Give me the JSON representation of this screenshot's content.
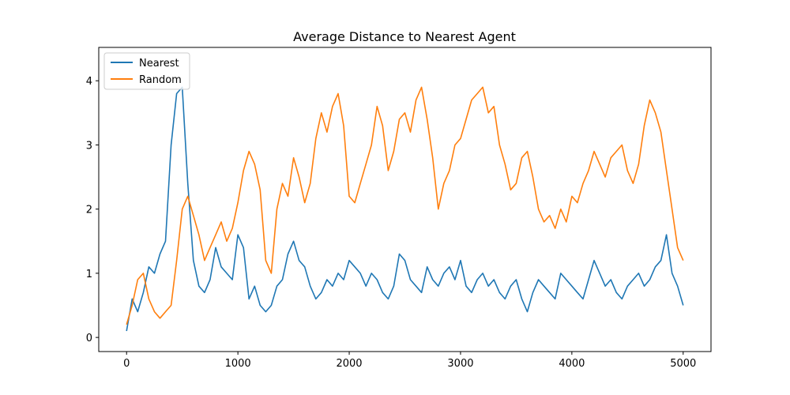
{
  "chart_data": {
    "type": "line",
    "title": "Average Distance to Nearest Agent",
    "xlabel": "",
    "ylabel": "",
    "xlim": [
      -250,
      5250
    ],
    "ylim": [
      -0.22,
      4.52
    ],
    "x_ticks": [
      0,
      1000,
      2000,
      3000,
      4000,
      5000
    ],
    "x_tick_labels": [
      "0",
      "1000",
      "2000",
      "3000",
      "4000",
      "5000"
    ],
    "y_ticks": [
      0,
      1,
      2,
      3,
      4
    ],
    "y_tick_labels": [
      "0",
      "1",
      "2",
      "3",
      "4"
    ],
    "grid": false,
    "legend_position": "top-left",
    "series": [
      {
        "name": "Nearest",
        "color": "#1f77b4",
        "x": [
          0,
          50,
          100,
          150,
          200,
          250,
          300,
          350,
          400,
          450,
          500,
          550,
          600,
          650,
          700,
          750,
          800,
          850,
          900,
          950,
          1000,
          1050,
          1100,
          1150,
          1200,
          1250,
          1300,
          1350,
          1400,
          1450,
          1500,
          1550,
          1600,
          1650,
          1700,
          1750,
          1800,
          1850,
          1900,
          1950,
          2000,
          2050,
          2100,
          2150,
          2200,
          2250,
          2300,
          2350,
          2400,
          2450,
          2500,
          2550,
          2600,
          2650,
          2700,
          2750,
          2800,
          2850,
          2900,
          2950,
          3000,
          3050,
          3100,
          3150,
          3200,
          3250,
          3300,
          3350,
          3400,
          3450,
          3500,
          3550,
          3600,
          3650,
          3700,
          3750,
          3800,
          3850,
          3900,
          3950,
          4000,
          4050,
          4100,
          4150,
          4200,
          4250,
          4300,
          4350,
          4400,
          4450,
          4500,
          4550,
          4600,
          4650,
          4700,
          4750,
          4800,
          4850,
          4900,
          4950,
          5000
        ],
        "y": [
          0.1,
          0.6,
          0.4,
          0.7,
          1.1,
          1.0,
          1.3,
          1.5,
          3.0,
          3.8,
          3.9,
          2.4,
          1.2,
          0.8,
          0.7,
          0.9,
          1.4,
          1.1,
          1.0,
          0.9,
          1.6,
          1.4,
          0.6,
          0.8,
          0.5,
          0.4,
          0.5,
          0.8,
          0.9,
          1.3,
          1.5,
          1.2,
          1.1,
          0.8,
          0.6,
          0.7,
          0.9,
          0.8,
          1.0,
          0.9,
          1.2,
          1.1,
          1.0,
          0.8,
          1.0,
          0.9,
          0.7,
          0.6,
          0.8,
          1.3,
          1.2,
          0.9,
          0.8,
          0.7,
          1.1,
          0.9,
          0.8,
          1.0,
          1.1,
          0.9,
          1.2,
          0.8,
          0.7,
          0.9,
          1.0,
          0.8,
          0.9,
          0.7,
          0.6,
          0.8,
          0.9,
          0.6,
          0.4,
          0.7,
          0.9,
          0.8,
          0.7,
          0.6,
          1.0,
          0.9,
          0.8,
          0.7,
          0.6,
          0.9,
          1.2,
          1.0,
          0.8,
          0.9,
          0.7,
          0.6,
          0.8,
          0.9,
          1.0,
          0.8,
          0.9,
          1.1,
          1.2,
          1.6,
          1.0,
          0.8,
          0.5
        ]
      },
      {
        "name": "Random",
        "color": "#ff7f0e",
        "x": [
          0,
          50,
          100,
          150,
          200,
          250,
          300,
          350,
          400,
          450,
          500,
          550,
          600,
          650,
          700,
          750,
          800,
          850,
          900,
          950,
          1000,
          1050,
          1100,
          1150,
          1200,
          1250,
          1300,
          1350,
          1400,
          1450,
          1500,
          1550,
          1600,
          1650,
          1700,
          1750,
          1800,
          1850,
          1900,
          1950,
          2000,
          2050,
          2100,
          2150,
          2200,
          2250,
          2300,
          2350,
          2400,
          2450,
          2500,
          2550,
          2600,
          2650,
          2700,
          2750,
          2800,
          2850,
          2900,
          2950,
          3000,
          3050,
          3100,
          3150,
          3200,
          3250,
          3300,
          3350,
          3400,
          3450,
          3500,
          3550,
          3600,
          3650,
          3700,
          3750,
          3800,
          3850,
          3900,
          3950,
          4000,
          4050,
          4100,
          4150,
          4200,
          4250,
          4300,
          4350,
          4400,
          4450,
          4500,
          4550,
          4600,
          4650,
          4700,
          4750,
          4800,
          4850,
          4900,
          4950,
          5000
        ],
        "y": [
          0.2,
          0.5,
          0.9,
          1.0,
          0.6,
          0.4,
          0.3,
          0.4,
          0.5,
          1.2,
          2.0,
          2.2,
          1.9,
          1.6,
          1.2,
          1.4,
          1.6,
          1.8,
          1.5,
          1.7,
          2.1,
          2.6,
          2.9,
          2.7,
          2.3,
          1.2,
          1.0,
          2.0,
          2.4,
          2.2,
          2.8,
          2.5,
          2.1,
          2.4,
          3.1,
          3.5,
          3.2,
          3.6,
          3.8,
          3.3,
          2.2,
          2.1,
          2.4,
          2.7,
          3.0,
          3.6,
          3.3,
          2.6,
          2.9,
          3.4,
          3.5,
          3.2,
          3.7,
          3.9,
          3.4,
          2.8,
          2.0,
          2.4,
          2.6,
          3.0,
          3.1,
          3.4,
          3.7,
          3.8,
          3.9,
          3.5,
          3.6,
          3.0,
          2.7,
          2.3,
          2.4,
          2.8,
          2.9,
          2.5,
          2.0,
          1.8,
          1.9,
          1.7,
          2.0,
          1.8,
          2.2,
          2.1,
          2.4,
          2.6,
          2.9,
          2.7,
          2.5,
          2.8,
          2.9,
          3.0,
          2.6,
          2.4,
          2.7,
          3.3,
          3.7,
          3.5,
          3.2,
          2.6,
          2.0,
          1.4,
          1.2
        ]
      }
    ]
  }
}
